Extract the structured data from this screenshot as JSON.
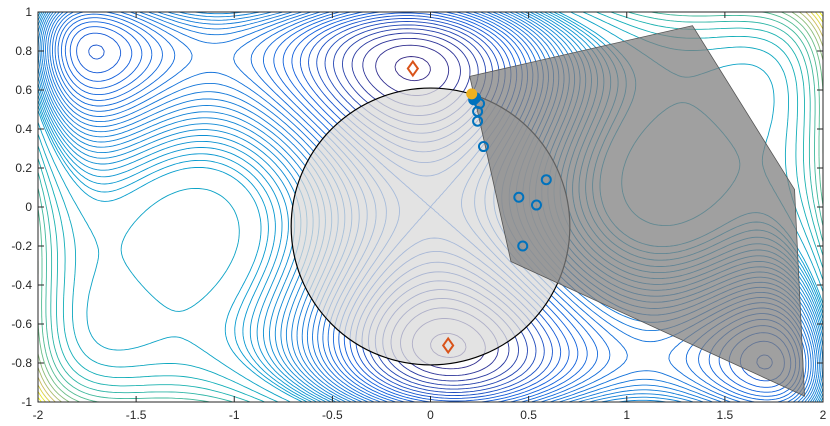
{
  "chart_data": {
    "type": "contour",
    "xlim": [
      -2,
      2
    ],
    "ylim": [
      -1,
      1
    ],
    "xticks": [
      -2,
      -1.5,
      -1,
      -0.5,
      0,
      0.5,
      1,
      1.5,
      2
    ],
    "yticks": [
      -1,
      -0.8,
      -0.6,
      -0.4,
      -0.2,
      0,
      0.2,
      0.4,
      0.6,
      0.8,
      1
    ],
    "levels": [
      -1.0,
      -0.9,
      -0.8,
      -0.7,
      -0.6,
      -0.5,
      -0.4,
      -0.3,
      -0.2,
      -0.1,
      0,
      0.1,
      0.2,
      0.3,
      0.4,
      0.5,
      0.6,
      0.7,
      0.8,
      0.9,
      1.0,
      1.1,
      1.2,
      1.3,
      1.4,
      1.5,
      1.6,
      1.7,
      1.8,
      1.9,
      2.0,
      2.25,
      2.5,
      2.75,
      3.0,
      3.25,
      3.5,
      3.75,
      4.0,
      4.25,
      4.5,
      4.75,
      5.0,
      5.25,
      5.5
    ],
    "circle": {
      "center": [
        0,
        -0.1
      ],
      "radius": 0.71,
      "color": "#d9d9d9"
    },
    "polygon": {
      "x": [
        0.2,
        1.335,
        1.855,
        1.906,
        0.41
      ],
      "y": [
        0.67,
        0.93,
        0.09,
        -0.97,
        -0.28
      ],
      "color": "#808080"
    },
    "markers": [
      {
        "marker": "circle",
        "filled": false,
        "color": "#0072bd",
        "x": [
          0.27,
          0.24,
          0.24,
          0.25,
          0.45,
          0.54,
          0.59,
          0.47
        ],
        "y": [
          0.31,
          0.44,
          0.49,
          0.53,
          0.05,
          0.01,
          0.14,
          -0.2
        ]
      },
      {
        "marker": "circle",
        "filled": true,
        "color": "#0072bd",
        "x": [
          0.22,
          0.23
        ],
        "y": [
          0.55,
          0.56
        ]
      },
      {
        "marker": "circle",
        "filled": true,
        "color": "#edb120",
        "x": [
          0.21
        ],
        "y": [
          0.58
        ]
      },
      {
        "marker": "diamond",
        "filled": false,
        "color": "#d95319",
        "x": [
          -0.09,
          0.09
        ],
        "y": [
          0.71,
          -0.71
        ]
      }
    ]
  }
}
